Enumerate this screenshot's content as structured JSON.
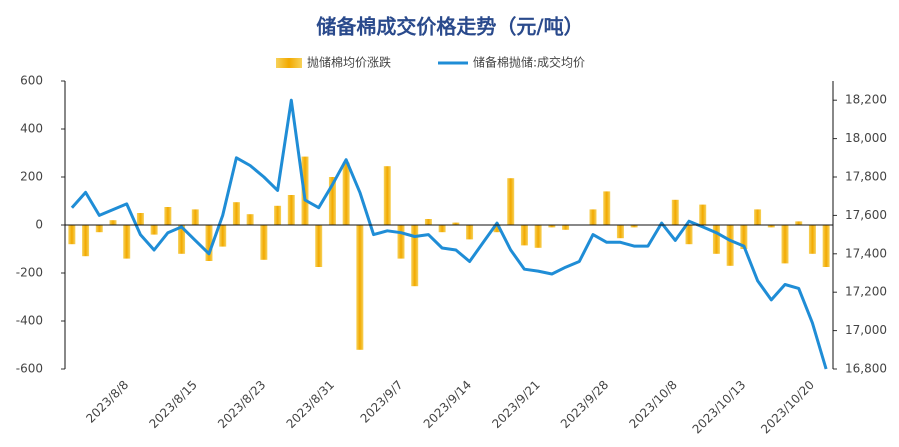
{
  "chart_data": {
    "type": "bar-line",
    "title": "储备棉成交价格走势（元/吨）",
    "categories": [
      null,
      null,
      null,
      null,
      "2023/8/8",
      null,
      null,
      null,
      null,
      "2023/8/15",
      null,
      null,
      null,
      null,
      "2023/8/23",
      null,
      null,
      null,
      null,
      "2023/8/31",
      null,
      null,
      null,
      null,
      "2023/9/7",
      null,
      null,
      null,
      null,
      "2023/9/14",
      null,
      null,
      null,
      null,
      "2023/9/21",
      null,
      null,
      null,
      null,
      "2023/9/28",
      null,
      null,
      null,
      null,
      "2023/10/8",
      null,
      null,
      null,
      null,
      "2023/10/13",
      null,
      null,
      null,
      null,
      "2023/10/20",
      null
    ],
    "series": [
      {
        "name": "抛储棉均价涨跌",
        "color": "#f5b800",
        "type": "bar",
        "values": [
          -80,
          -130,
          -30,
          20,
          -140,
          50,
          -40,
          75,
          -120,
          65,
          -150,
          -90,
          95,
          45,
          -145,
          80,
          125,
          285,
          -175,
          200,
          260,
          -520,
          0,
          245,
          -140,
          -255,
          25,
          -30,
          10,
          -60,
          0,
          -30,
          195,
          -85,
          -95,
          -10,
          -20,
          0,
          65,
          140,
          -55,
          -10,
          0,
          0,
          105,
          -80,
          85,
          -120,
          -170,
          -100,
          65,
          -10,
          -160,
          15,
          -120,
          -175
        ]
      },
      {
        "name": "储备棉抛储:成交均价",
        "color": "#1f8dd6",
        "type": "line",
        "axis": "y2",
        "values": [
          17640,
          17720,
          17600,
          17630,
          17660,
          17500,
          17420,
          17510,
          17540,
          17470,
          17400,
          17600,
          17900,
          17860,
          17800,
          17730,
          18200,
          17680,
          17640,
          17760,
          17890,
          17720,
          17500,
          17520,
          17510,
          17490,
          17500,
          17430,
          17420,
          17360,
          17460,
          17560,
          17420,
          17320,
          17310,
          17295,
          17330,
          17360,
          17500,
          17460,
          17460,
          17440,
          17440,
          17560,
          17470,
          17570,
          17540,
          17510,
          17470,
          17440,
          17260,
          17160,
          17240,
          17220,
          17040,
          16800
        ]
      }
    ],
    "ylim": [
      -600,
      600
    ],
    "yticks": [
      -600,
      -400,
      -200,
      0,
      200,
      400,
      600
    ],
    "y2lim": [
      16800,
      18300
    ],
    "y2ticks": [
      {
        "value": 16800,
        "label": "16,800"
      },
      {
        "value": 17000,
        "label": "17,000"
      },
      {
        "value": 17200,
        "label": "17,200"
      },
      {
        "value": 17400,
        "label": "17,400"
      },
      {
        "value": 17600,
        "label": "17,600"
      },
      {
        "value": 17800,
        "label": "17,800"
      },
      {
        "value": 18000,
        "label": "18,000"
      },
      {
        "value": 18200,
        "label": "18,200"
      }
    ]
  }
}
